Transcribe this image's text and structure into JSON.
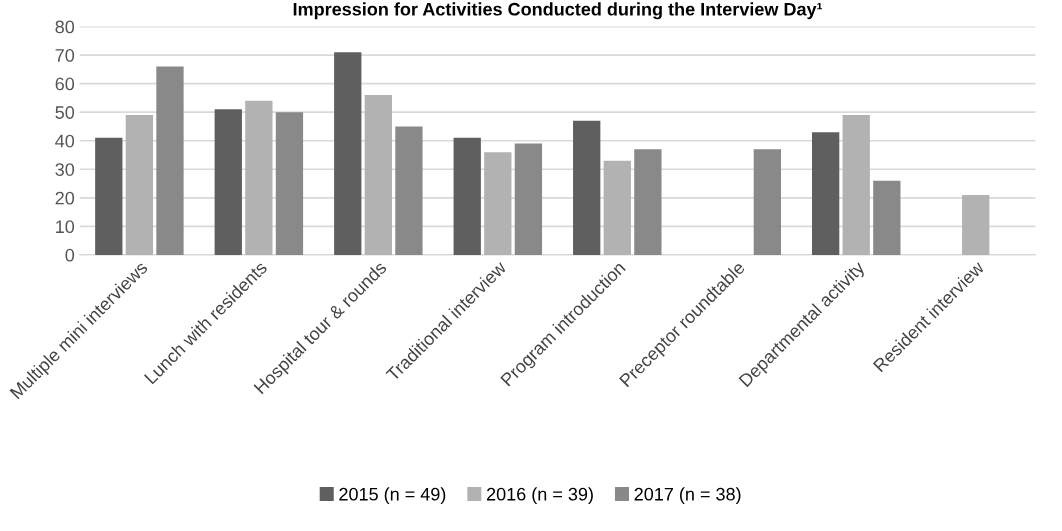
{
  "chart_data": {
    "type": "bar",
    "title": "Impression for Activities Conducted during the Interview Day¹",
    "categories": [
      "Multiple mini interviews",
      "Lunch with residents",
      "Hospital tour & rounds",
      "Traditional interview",
      "Program introduction",
      "Preceptor roundtable",
      "Departmental activity",
      "Resident interview"
    ],
    "series": [
      {
        "name": "2015 (n = 49)",
        "color": "#5f5f5f",
        "values": [
          41,
          51,
          71,
          41,
          47,
          null,
          43,
          null
        ]
      },
      {
        "name": "2016 (n = 39)",
        "color": "#b2b2b2",
        "values": [
          49,
          54,
          56,
          36,
          33,
          null,
          49,
          21
        ]
      },
      {
        "name": "2017 (n = 38)",
        "color": "#898989",
        "values": [
          66,
          50,
          45,
          39,
          37,
          37,
          26,
          null
        ]
      }
    ],
    "ylim": [
      0,
      80
    ],
    "yticks": [
      0,
      10,
      20,
      30,
      40,
      50,
      60,
      70,
      80
    ],
    "grid": "y",
    "legend": "bottom"
  }
}
